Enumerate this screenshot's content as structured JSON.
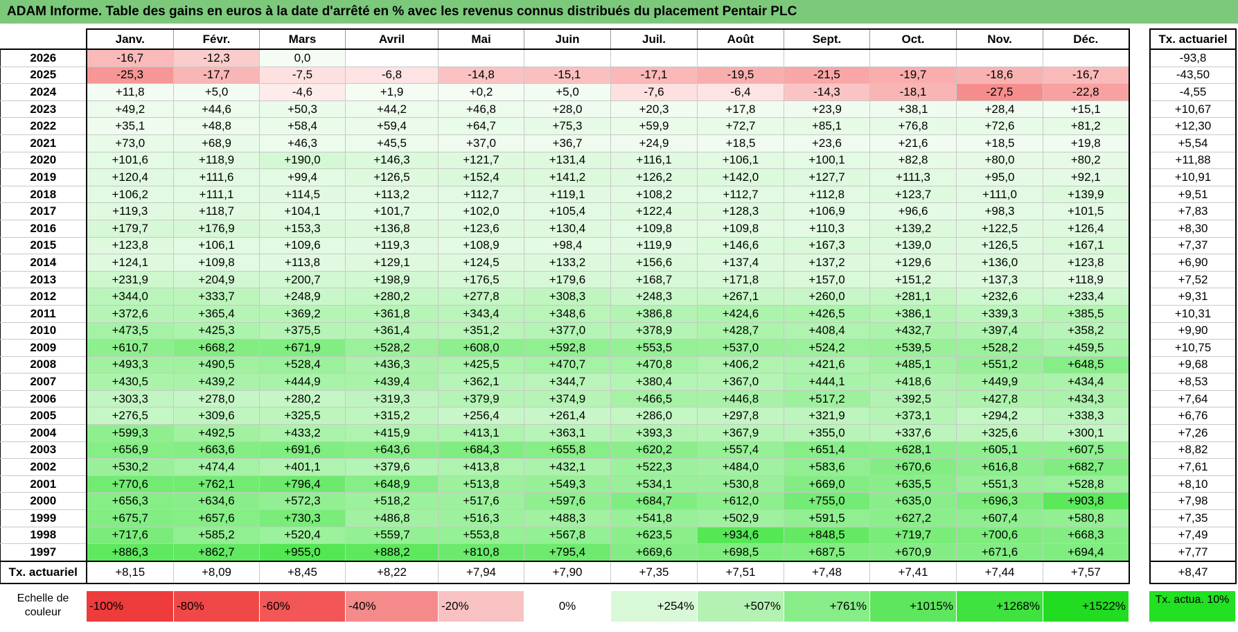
{
  "title": "ADAM Informe. Table des gains en euros à la date d'arrêté en % avec les revenus connus distribués du placement Pentair PLC",
  "months": [
    "Janv.",
    "Févr.",
    "Mars",
    "Avril",
    "Mai",
    "Juin",
    "Juil.",
    "Août",
    "Sept.",
    "Oct.",
    "Nov.",
    "Déc."
  ],
  "side_header": "Tx. actuariel",
  "rows": [
    {
      "year": "2026",
      "cells": [
        "-16,7",
        "-12,3",
        "0,0",
        "",
        "",
        "",
        "",
        "",
        "",
        "",
        "",
        ""
      ],
      "rate": "-93,8"
    },
    {
      "year": "2025",
      "cells": [
        "-25,3",
        "-17,7",
        "-7,5",
        "-6,8",
        "-14,8",
        "-15,1",
        "-17,1",
        "-19,5",
        "-21,5",
        "-19,7",
        "-18,6",
        "-16,7"
      ],
      "rate": "-43,50"
    },
    {
      "year": "2024",
      "cells": [
        "+11,8",
        "+5,0",
        "-4,6",
        "+1,9",
        "+0,2",
        "+5,0",
        "-7,6",
        "-6,4",
        "-14,3",
        "-18,1",
        "-27,5",
        "-22,8"
      ],
      "rate": "-4,55"
    },
    {
      "year": "2023",
      "cells": [
        "+49,2",
        "+44,6",
        "+50,3",
        "+44,2",
        "+46,8",
        "+28,0",
        "+20,3",
        "+17,8",
        "+23,9",
        "+38,1",
        "+28,4",
        "+15,1"
      ],
      "rate": "+10,67"
    },
    {
      "year": "2022",
      "cells": [
        "+35,1",
        "+48,8",
        "+58,4",
        "+59,4",
        "+64,7",
        "+75,3",
        "+59,9",
        "+72,7",
        "+85,1",
        "+76,8",
        "+72,6",
        "+81,2"
      ],
      "rate": "+12,30"
    },
    {
      "year": "2021",
      "cells": [
        "+73,0",
        "+68,9",
        "+46,3",
        "+45,5",
        "+37,0",
        "+36,7",
        "+24,9",
        "+18,5",
        "+23,6",
        "+21,6",
        "+18,5",
        "+19,8"
      ],
      "rate": "+5,54"
    },
    {
      "year": "2020",
      "cells": [
        "+101,6",
        "+118,9",
        "+190,0",
        "+146,3",
        "+121,7",
        "+131,4",
        "+116,1",
        "+106,1",
        "+100,1",
        "+82,8",
        "+80,0",
        "+80,2"
      ],
      "rate": "+11,88"
    },
    {
      "year": "2019",
      "cells": [
        "+120,4",
        "+111,6",
        "+99,4",
        "+126,5",
        "+152,4",
        "+141,2",
        "+126,2",
        "+142,0",
        "+127,7",
        "+111,3",
        "+95,0",
        "+92,1"
      ],
      "rate": "+10,91"
    },
    {
      "year": "2018",
      "cells": [
        "+106,2",
        "+111,1",
        "+114,5",
        "+113,2",
        "+112,7",
        "+119,1",
        "+108,2",
        "+112,7",
        "+112,8",
        "+123,7",
        "+111,0",
        "+139,9"
      ],
      "rate": "+9,51"
    },
    {
      "year": "2017",
      "cells": [
        "+119,3",
        "+118,7",
        "+104,1",
        "+101,7",
        "+102,0",
        "+105,4",
        "+122,4",
        "+128,3",
        "+106,9",
        "+96,6",
        "+98,3",
        "+101,5"
      ],
      "rate": "+7,83"
    },
    {
      "year": "2016",
      "cells": [
        "+179,7",
        "+176,9",
        "+153,3",
        "+136,8",
        "+123,6",
        "+130,4",
        "+109,8",
        "+109,8",
        "+110,3",
        "+139,2",
        "+122,5",
        "+126,4"
      ],
      "rate": "+8,30"
    },
    {
      "year": "2015",
      "cells": [
        "+123,8",
        "+106,1",
        "+109,6",
        "+119,3",
        "+108,9",
        "+98,4",
        "+119,9",
        "+146,6",
        "+167,3",
        "+139,0",
        "+126,5",
        "+167,1"
      ],
      "rate": "+7,37"
    },
    {
      "year": "2014",
      "cells": [
        "+124,1",
        "+109,8",
        "+113,8",
        "+129,1",
        "+124,5",
        "+133,2",
        "+156,6",
        "+137,4",
        "+137,2",
        "+129,6",
        "+136,0",
        "+123,8"
      ],
      "rate": "+6,90"
    },
    {
      "year": "2013",
      "cells": [
        "+231,9",
        "+204,9",
        "+200,7",
        "+198,9",
        "+176,5",
        "+179,6",
        "+168,7",
        "+171,8",
        "+157,0",
        "+151,2",
        "+137,3",
        "+118,9"
      ],
      "rate": "+7,52"
    },
    {
      "year": "2012",
      "cells": [
        "+344,0",
        "+333,7",
        "+248,9",
        "+280,2",
        "+277,8",
        "+308,3",
        "+248,3",
        "+267,1",
        "+260,0",
        "+281,1",
        "+232,6",
        "+233,4"
      ],
      "rate": "+9,31"
    },
    {
      "year": "2011",
      "cells": [
        "+372,6",
        "+365,4",
        "+369,2",
        "+361,8",
        "+343,4",
        "+348,6",
        "+386,8",
        "+424,6",
        "+426,5",
        "+386,1",
        "+339,3",
        "+385,5"
      ],
      "rate": "+10,31"
    },
    {
      "year": "2010",
      "cells": [
        "+473,5",
        "+425,3",
        "+375,5",
        "+361,4",
        "+351,2",
        "+377,0",
        "+378,9",
        "+428,7",
        "+408,4",
        "+432,7",
        "+397,4",
        "+358,2"
      ],
      "rate": "+9,90"
    },
    {
      "year": "2009",
      "cells": [
        "+610,7",
        "+668,2",
        "+671,9",
        "+528,2",
        "+608,0",
        "+592,8",
        "+553,5",
        "+537,0",
        "+524,2",
        "+539,5",
        "+528,2",
        "+459,5"
      ],
      "rate": "+10,75"
    },
    {
      "year": "2008",
      "cells": [
        "+493,3",
        "+490,5",
        "+528,4",
        "+436,3",
        "+425,5",
        "+470,7",
        "+470,8",
        "+406,2",
        "+421,6",
        "+485,1",
        "+551,2",
        "+648,5"
      ],
      "rate": "+9,68"
    },
    {
      "year": "2007",
      "cells": [
        "+430,5",
        "+439,2",
        "+444,9",
        "+439,4",
        "+362,1",
        "+344,7",
        "+380,4",
        "+367,0",
        "+444,1",
        "+418,6",
        "+449,9",
        "+434,4"
      ],
      "rate": "+8,53"
    },
    {
      "year": "2006",
      "cells": [
        "+303,3",
        "+278,0",
        "+280,2",
        "+319,3",
        "+379,9",
        "+374,9",
        "+466,5",
        "+446,8",
        "+517,2",
        "+392,5",
        "+427,8",
        "+434,3"
      ],
      "rate": "+7,64"
    },
    {
      "year": "2005",
      "cells": [
        "+276,5",
        "+309,6",
        "+325,5",
        "+315,2",
        "+256,4",
        "+261,4",
        "+286,0",
        "+297,8",
        "+321,9",
        "+373,1",
        "+294,2",
        "+338,3"
      ],
      "rate": "+6,76"
    },
    {
      "year": "2004",
      "cells": [
        "+599,3",
        "+492,5",
        "+433,2",
        "+415,9",
        "+413,1",
        "+363,1",
        "+393,3",
        "+367,9",
        "+355,0",
        "+337,6",
        "+325,6",
        "+300,1"
      ],
      "rate": "+7,26"
    },
    {
      "year": "2003",
      "cells": [
        "+656,9",
        "+663,6",
        "+691,6",
        "+643,6",
        "+684,3",
        "+655,8",
        "+620,2",
        "+557,4",
        "+651,4",
        "+628,1",
        "+605,1",
        "+607,5"
      ],
      "rate": "+8,82"
    },
    {
      "year": "2002",
      "cells": [
        "+530,2",
        "+474,4",
        "+401,1",
        "+379,6",
        "+413,8",
        "+432,1",
        "+522,3",
        "+484,0",
        "+583,6",
        "+670,6",
        "+616,8",
        "+682,7"
      ],
      "rate": "+7,61"
    },
    {
      "year": "2001",
      "cells": [
        "+770,6",
        "+762,1",
        "+796,4",
        "+648,9",
        "+513,8",
        "+549,3",
        "+534,1",
        "+530,8",
        "+669,0",
        "+635,5",
        "+551,3",
        "+528,8"
      ],
      "rate": "+8,10"
    },
    {
      "year": "2000",
      "cells": [
        "+656,3",
        "+634,6",
        "+572,3",
        "+518,2",
        "+517,6",
        "+597,6",
        "+684,7",
        "+612,0",
        "+755,0",
        "+635,0",
        "+696,3",
        "+903,8"
      ],
      "rate": "+7,98"
    },
    {
      "year": "1999",
      "cells": [
        "+675,7",
        "+657,6",
        "+730,3",
        "+486,8",
        "+516,3",
        "+488,3",
        "+541,8",
        "+502,9",
        "+591,5",
        "+627,2",
        "+607,4",
        "+580,8"
      ],
      "rate": "+7,35"
    },
    {
      "year": "1998",
      "cells": [
        "+717,6",
        "+585,2",
        "+520,4",
        "+559,7",
        "+553,8",
        "+567,8",
        "+623,5",
        "+934,6",
        "+848,5",
        "+719,7",
        "+700,6",
        "+668,3"
      ],
      "rate": "+7,49"
    },
    {
      "year": "1997",
      "cells": [
        "+886,3",
        "+862,7",
        "+955,0",
        "+888,2",
        "+810,8",
        "+795,4",
        "+669,6",
        "+698,5",
        "+687,5",
        "+670,9",
        "+671,6",
        "+694,4"
      ],
      "rate": "+7,77"
    }
  ],
  "summary": {
    "label": "Tx. actuariel",
    "cells": [
      "+8,15",
      "+8,09",
      "+8,45",
      "+8,22",
      "+7,94",
      "+7,90",
      "+7,35",
      "+7,51",
      "+7,48",
      "+7,41",
      "+7,44",
      "+7,57"
    ],
    "rate": "+8,47"
  },
  "scale": {
    "label": "Echelle de couleur",
    "items": [
      {
        "label": "-100%",
        "color": "#ee3b3b"
      },
      {
        "label": "-80%",
        "color": "#f04848"
      },
      {
        "label": "-60%",
        "color": "#f25656"
      },
      {
        "label": "-40%",
        "color": "#f58a8a"
      },
      {
        "label": "-20%",
        "color": "#f9c2c2"
      },
      {
        "label": "0%",
        "color": "#ffffff"
      },
      {
        "label": "+254%",
        "color": "#d8f8d8"
      },
      {
        "label": "+507%",
        "color": "#b4f2b4"
      },
      {
        "label": "+761%",
        "color": "#88ec88"
      },
      {
        "label": "+1015%",
        "color": "#5fe65f"
      },
      {
        "label": "+1268%",
        "color": "#3fe23f"
      },
      {
        "label": "+1522%",
        "color": "#22dc22"
      }
    ],
    "reference": "Tx. actua. 10%"
  }
}
